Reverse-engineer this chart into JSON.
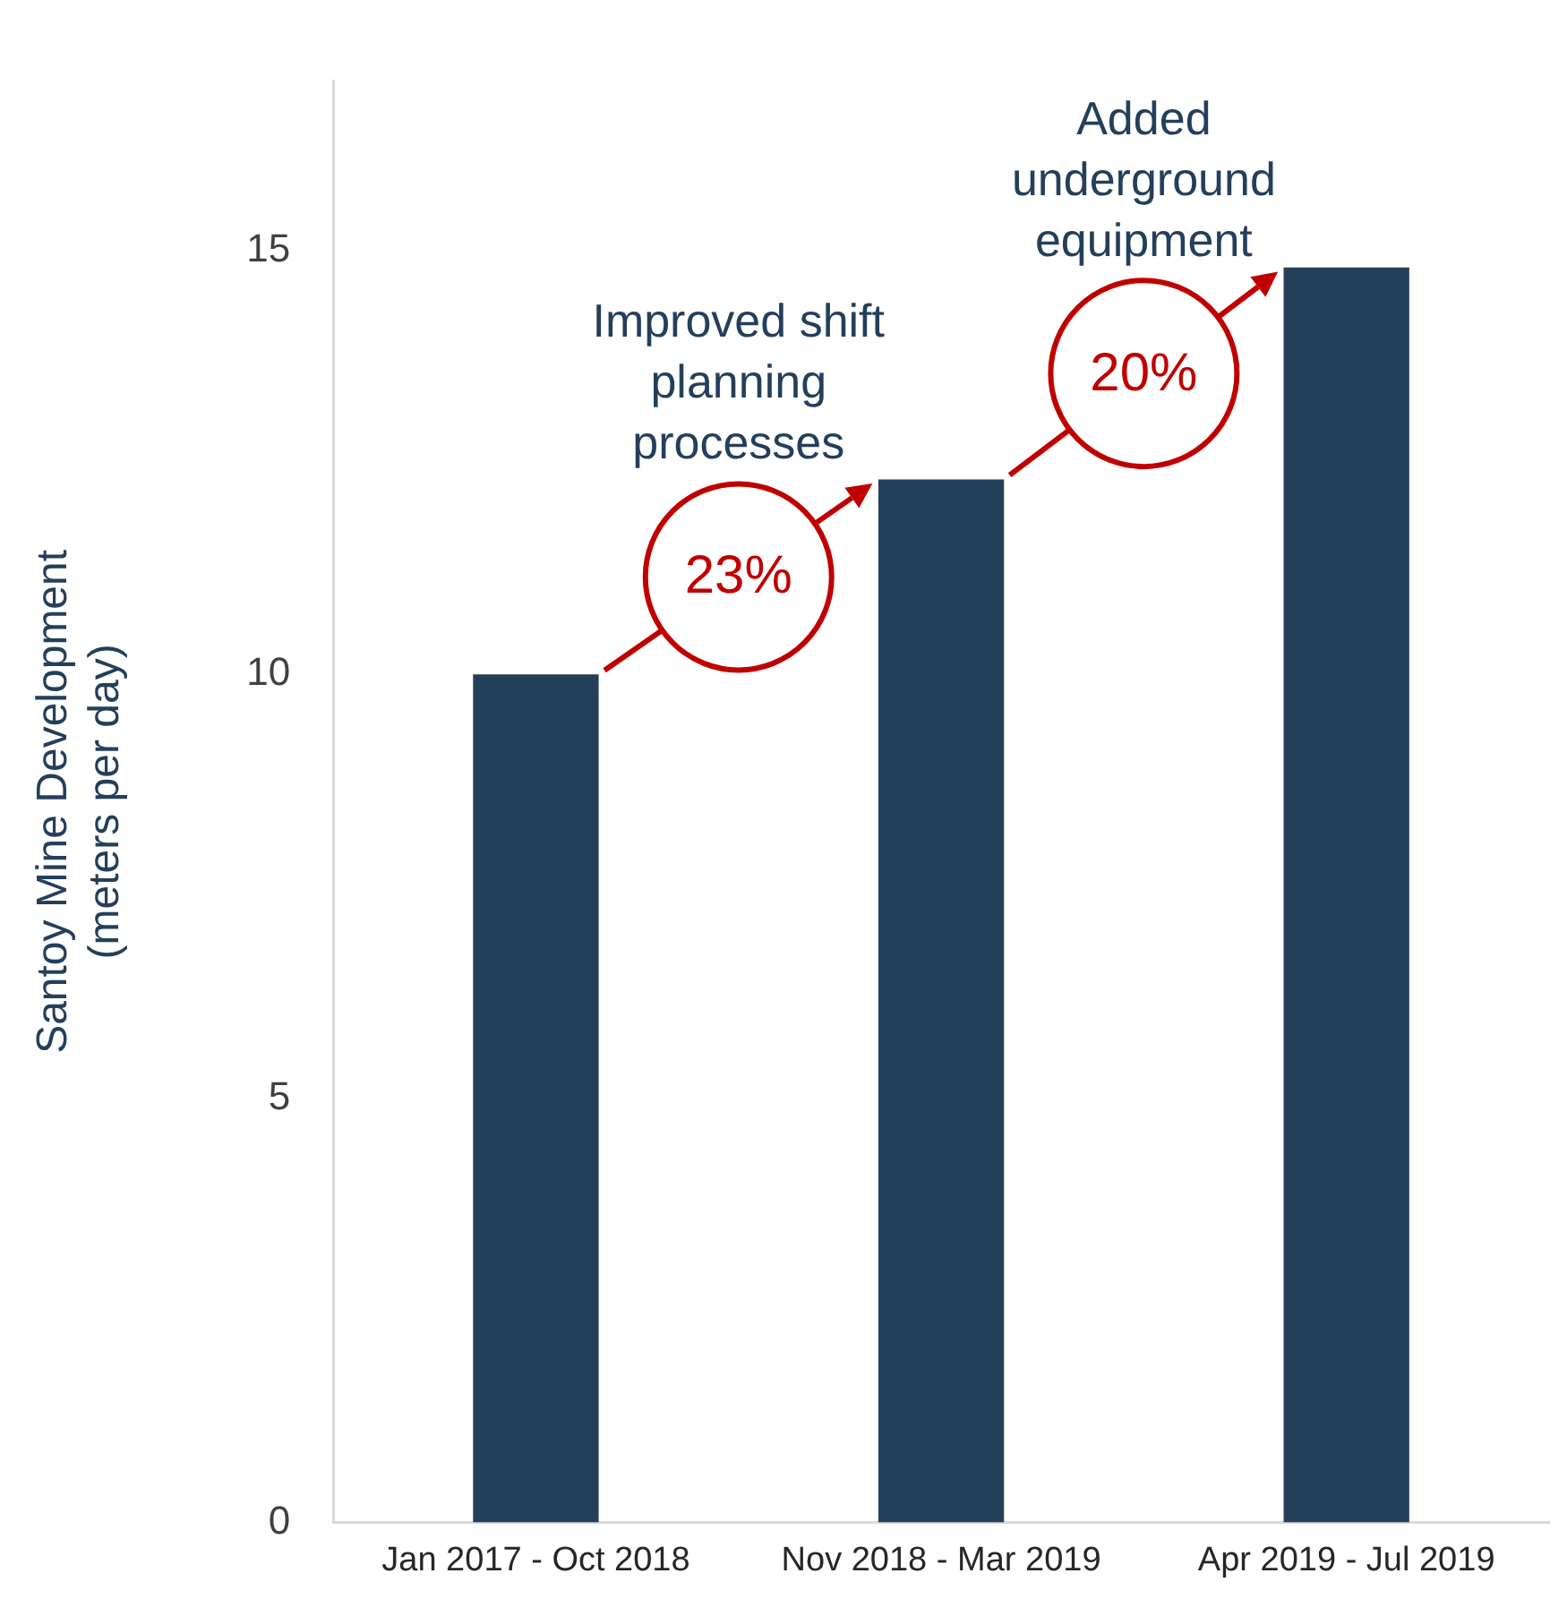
{
  "chart_data": {
    "type": "bar",
    "ylabel": "Santoy Mine Development\n(meters per day)",
    "categories": [
      "Jan 2017 - Oct 2018",
      "Nov 2018 - Mar 2019",
      "Apr 2019 - Jul 2019"
    ],
    "values": [
      10.0,
      12.3,
      14.8
    ],
    "color": "#243f5a",
    "ylim": [
      0,
      17
    ],
    "yticks": [
      0,
      5,
      10,
      15
    ],
    "grid": false,
    "legend": false,
    "annotations": [
      "Improved shift planning processes",
      "23%",
      "Added underground equipment",
      "20%"
    ]
  }
}
